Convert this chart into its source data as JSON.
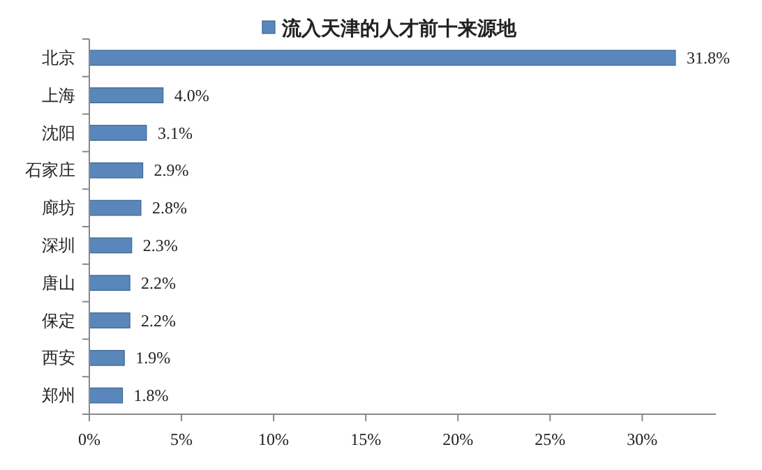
{
  "chart_data": {
    "type": "bar",
    "orientation": "horizontal",
    "categories": [
      "北京",
      "上海",
      "沈阳",
      "石家庄",
      "廊坊",
      "深圳",
      "唐山",
      "保定",
      "西安",
      "郑州"
    ],
    "series": [
      {
        "name": "流入天津的人才前十来源地",
        "color": "#5a87bb",
        "values": [
          31.8,
          4.0,
          3.1,
          2.9,
          2.8,
          2.3,
          2.2,
          2.2,
          1.9,
          1.8
        ],
        "value_labels": [
          "31.8%",
          "4.0%",
          "3.1%",
          "2.9%",
          "2.8%",
          "2.3%",
          "2.2%",
          "2.2%",
          "1.9%",
          "1.8%"
        ]
      }
    ],
    "xlim": [
      0,
      34
    ],
    "xticks": [
      {
        "value": 0,
        "label": "0%"
      },
      {
        "value": 5,
        "label": "5%"
      },
      {
        "value": 10,
        "label": "10%"
      },
      {
        "value": 15,
        "label": "15%"
      },
      {
        "value": 20,
        "label": "20%"
      },
      {
        "value": 25,
        "label": "25%"
      },
      {
        "value": 30,
        "label": "30%"
      }
    ],
    "legend": "top",
    "grid": false
  }
}
